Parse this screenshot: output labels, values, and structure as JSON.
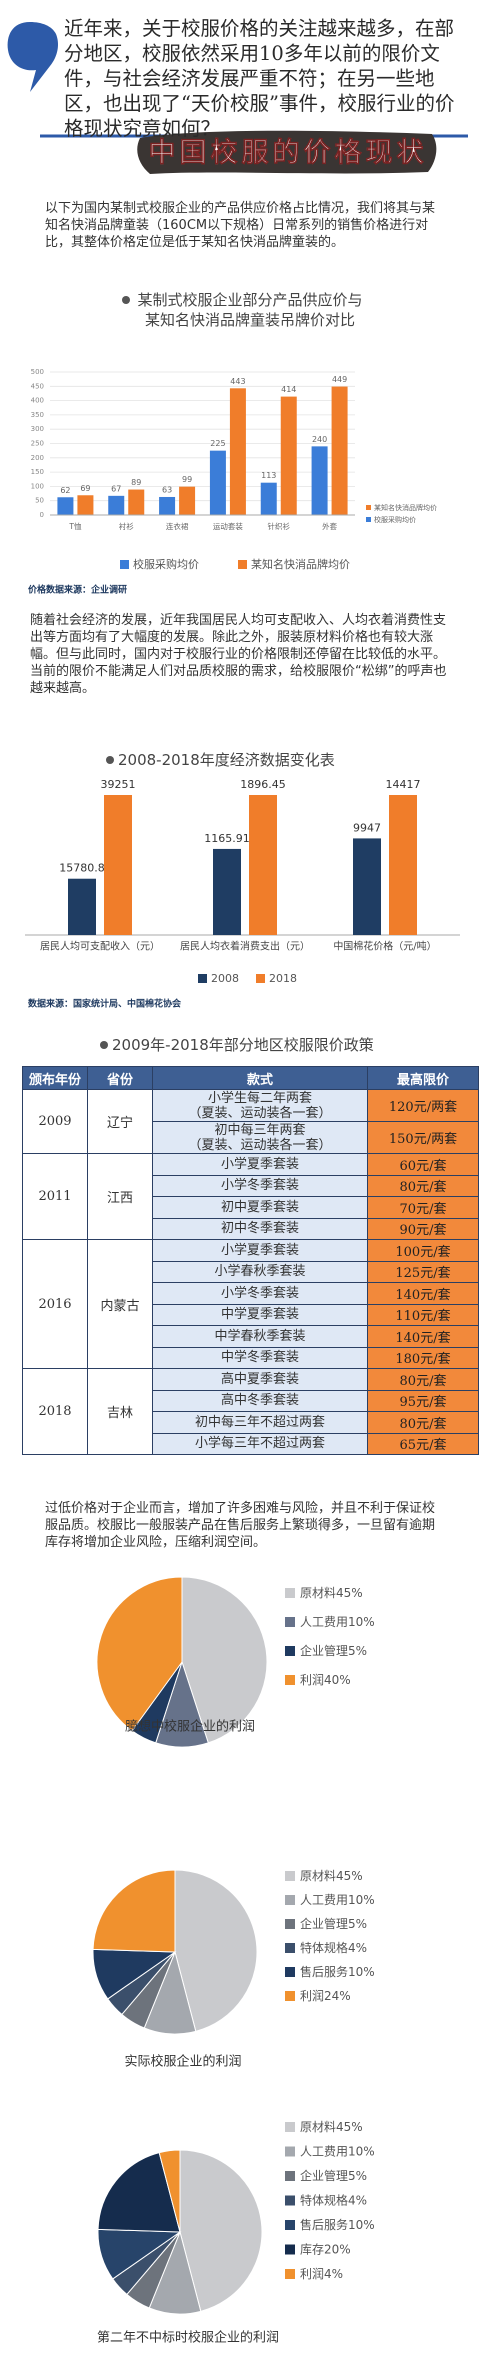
{
  "intro": "近年来，关于校服价格的关注越来越多，在部分地区，校服依然采用10多年以前的限价文件，与社会经济发展严重不符；在另一些地区，也出现了“天价校服”事件，校服行业的价格现状究竟如何？",
  "heading": "中国校服的价格现状",
  "paragraphs": [
    "以下为国内某制式校服企业的产品供应价格占比情况，我们将其与某知名快消品牌童装（160CM以下规格）日常系列的销售价格进行对比，其整体价格定位是低于某知名快消品牌童装的。",
    "随着社会经济的发展，近年我国居民人均可支配收入、人均衣着消费性支出等方面均有了大幅度的发展。除此之外，服装原材料价格也有较大涨幅。但与此同时，国内对于校服行业的价格限制还停留在比较低的水平。当前的限价不能满足人们对品质校服的需求，给校服限价“松绑”的呼声也越来越高。",
    "过低价格对于企业而言，增加了许多困难与风险，并且不利于保证校服品质。校服比一般服装产品在售后服务上繁琐得多，一旦留有逾期库存将增加企业风险，压缩利润空间。"
  ],
  "chart_data": [
    {
      "type": "bar",
      "title": "某制式校服企业部分产品供应价与某知名快消品牌童装吊牌价对比",
      "categories": [
        "T恤",
        "衬衫",
        "连衣裙",
        "运动套装",
        "针织衫",
        "外套"
      ],
      "series": [
        {
          "name": "校服采购均价",
          "color": "#3b7dd8",
          "values": [
            62,
            67,
            63,
            225,
            113,
            240
          ]
        },
        {
          "name": "某知名快消品牌均价",
          "color": "#f07d2a",
          "values": [
            69,
            89,
            99,
            443,
            414,
            449
          ]
        }
      ],
      "ylim": [
        0,
        500
      ],
      "yticks": [
        0,
        50,
        100,
        150,
        200,
        250,
        300,
        350,
        400,
        450,
        500
      ],
      "grid": true,
      "legend": "bottom",
      "source": "价格数据来源：企业调研"
    },
    {
      "type": "bar",
      "title": "2008-2018年度经济数据变化表",
      "categories": [
        "居民人均可支配收入（元）",
        "居民人均衣着消费支出（元）",
        "中国棉花价格（元/吨）"
      ],
      "series": [
        {
          "name": "2008",
          "color": "#1f3d63",
          "values": [
            15780.8,
            1165.91,
            9947
          ]
        },
        {
          "name": "2018",
          "color": "#f07d2a",
          "values": [
            39251,
            1896.45,
            14417
          ]
        }
      ],
      "legend": "bottom",
      "source": "数据来源：国家统计局、中国棉花协会"
    },
    {
      "type": "pie",
      "title": "臆想中校服企业的利润",
      "categories": [
        "原材料",
        "人工费用",
        "企业管理",
        "利润"
      ],
      "values": [
        45,
        10,
        5,
        40
      ],
      "value_labels": [
        "45%",
        "10%",
        "5%",
        "40%"
      ],
      "colors": [
        "#c9cacd",
        "#66728a",
        "#1f3a60",
        "#f0912e"
      ]
    },
    {
      "type": "pie",
      "title": "实际校服企业的利润",
      "categories": [
        "原材料",
        "人工费用",
        "企业管理",
        "特体规格",
        "售后服务",
        "利润"
      ],
      "values": [
        45,
        10,
        5,
        4,
        10,
        24
      ],
      "value_labels": [
        "45%",
        "10%",
        "5%",
        "4%",
        "10%",
        "24%"
      ],
      "colors": [
        "#c9cacd",
        "#a4a8ae",
        "#6d737c",
        "#3b4f6b",
        "#1f3a60",
        "#f0912e"
      ]
    },
    {
      "type": "pie",
      "title": "第二年不中标时校服企业的利润",
      "categories": [
        "原材料",
        "人工费用",
        "企业管理",
        "特体规格",
        "售后服务",
        "库存",
        "利润"
      ],
      "values": [
        45,
        10,
        5,
        4,
        10,
        20,
        4
      ],
      "value_labels": [
        "45%",
        "10%",
        "5%",
        "4%",
        "10%",
        "20%",
        "4%"
      ],
      "colors": [
        "#c9cacd",
        "#a4a8ae",
        "#6d737c",
        "#3b4f6b",
        "#27446a",
        "#152c4d",
        "#f0912e"
      ]
    }
  ],
  "table": {
    "title": "2009年-2018年部分地区校服限价政策",
    "header": [
      "颁布年份",
      "省份",
      "款式",
      "最高限价"
    ],
    "groups": [
      {
        "year": "2009",
        "province": "辽宁",
        "rows": [
          {
            "style": "小学生每二年两套\n（夏装、运动装各一套）",
            "price": "120元/两套"
          },
          {
            "style": "初中每三年两套\n（夏装、运动装各一套）",
            "price": "150元/两套"
          }
        ]
      },
      {
        "year": "2011",
        "province": "江西",
        "rows": [
          {
            "style": "小学夏季套装",
            "price": "60元/套"
          },
          {
            "style": "小学冬季套装",
            "price": "80元/套"
          },
          {
            "style": "初中夏季套装",
            "price": "70元/套"
          },
          {
            "style": "初中冬季套装",
            "price": "90元/套"
          }
        ]
      },
      {
        "year": "2016",
        "province": "内蒙古",
        "rows": [
          {
            "style": "小学夏季套装",
            "price": "100元/套"
          },
          {
            "style": "小学春秋季套装",
            "price": "125元/套"
          },
          {
            "style": "小学冬季套装",
            "price": "140元/套"
          },
          {
            "style": "中学夏季套装",
            "price": "110元/套"
          },
          {
            "style": "中学春秋季套装",
            "price": "140元/套"
          },
          {
            "style": "中学冬季套装",
            "price": "180元/套"
          }
        ]
      },
      {
        "year": "2018",
        "province": "吉林",
        "rows": [
          {
            "style": "高中夏季套装",
            "price": "80元/套"
          },
          {
            "style": "高中冬季套装",
            "price": "95元/套"
          },
          {
            "style": "初中每三年不超过两套",
            "price": "80元/套"
          },
          {
            "style": "小学每三年不超过两套",
            "price": "65元/套"
          }
        ]
      }
    ]
  }
}
